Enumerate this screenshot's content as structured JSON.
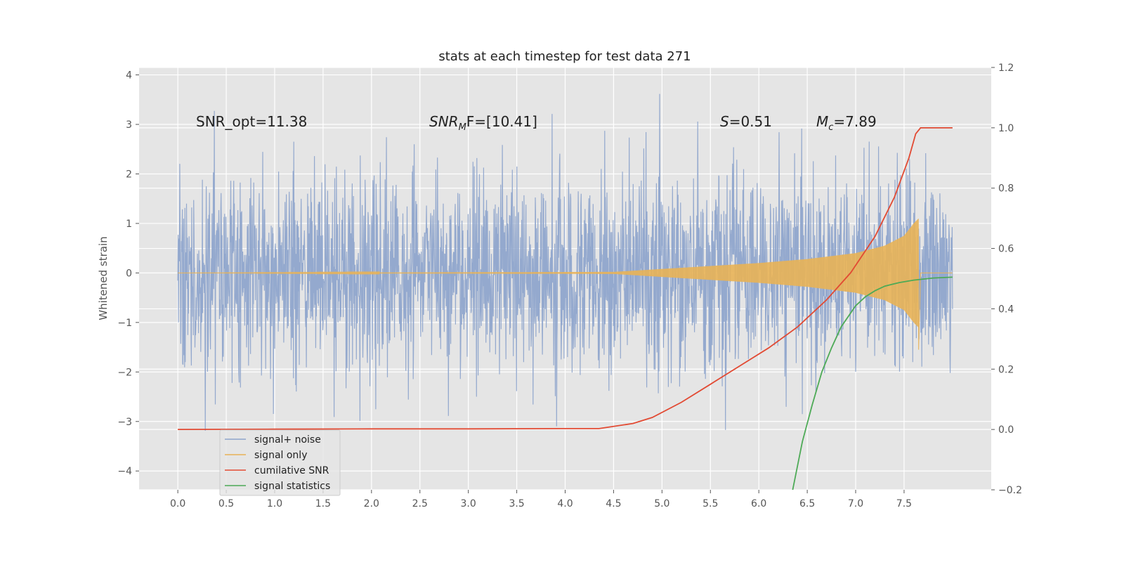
{
  "chart_data": {
    "type": "line",
    "title": "stats at each timestep for test data 271",
    "ylabel": "Whitened strain",
    "xlabel": "",
    "xlim": [
      -0.4,
      8.4
    ],
    "ylim": [
      -4.38,
      4.15
    ],
    "y2lim": [
      -0.2,
      1.2
    ],
    "x_ticks": [
      0.0,
      0.5,
      1.0,
      1.5,
      2.0,
      2.5,
      3.0,
      3.5,
      4.0,
      4.5,
      5.0,
      5.5,
      6.0,
      6.5,
      7.0,
      7.5
    ],
    "x_tick_labels": [
      "0.0",
      "0.5",
      "1.0",
      "1.5",
      "2.0",
      "2.5",
      "3.0",
      "3.5",
      "4.0",
      "4.5",
      "5.0",
      "5.5",
      "6.0",
      "6.5",
      "7.0",
      "7.5"
    ],
    "y_ticks": [
      -4,
      -3,
      -2,
      -1,
      0,
      1,
      2,
      3,
      4
    ],
    "y_tick_labels": [
      "−4",
      "−3",
      "−2",
      "−1",
      "0",
      "1",
      "2",
      "3",
      "4"
    ],
    "y2_ticks": [
      -0.2,
      0.0,
      0.2,
      0.4,
      0.6,
      0.8,
      1.0,
      1.2
    ],
    "y2_tick_labels": [
      "−0.2",
      "0.0",
      "0.2",
      "0.4",
      "0.6",
      "0.8",
      "1.0",
      "1.2"
    ],
    "grid": true,
    "legend_position": "lower-left",
    "annotations": {
      "snr_opt": "SNR_opt=11.38",
      "snr_mf_main": "SNR",
      "snr_mf_sub": "M",
      "snr_mf_rest": "F=[10.41]",
      "s_main": "S",
      "s_rest": "=0.51",
      "mc_main": "M",
      "mc_sub": "c",
      "mc_rest": "=7.89"
    },
    "series": [
      {
        "name": "signal+ noise",
        "color": "#8fa5cc",
        "axis": "left",
        "style": "dense noise, approx. std 0.9, range about -4 to 3.8",
        "x_range": [
          0.0,
          8.0
        ]
      },
      {
        "name": "signal only",
        "color": "#e8b256",
        "axis": "left",
        "envelope": {
          "x": [
            0.0,
            4.5,
            5.0,
            5.5,
            6.0,
            6.5,
            7.0,
            7.3,
            7.5,
            7.6,
            7.65
          ],
          "amplitude": [
            0.0,
            0.02,
            0.08,
            0.14,
            0.2,
            0.28,
            0.4,
            0.55,
            0.75,
            1.0,
            1.1
          ]
        }
      },
      {
        "name": "cumilative SNR",
        "color": "#e24a33",
        "axis": "right",
        "x": [
          0.0,
          1.0,
          2.0,
          3.0,
          4.0,
          4.35,
          4.7,
          4.9,
          5.2,
          5.5,
          5.8,
          6.1,
          6.4,
          6.7,
          6.95,
          7.2,
          7.4,
          7.55,
          7.62,
          7.67,
          8.0
        ],
        "values": [
          0.0,
          0.001,
          0.002,
          0.002,
          0.003,
          0.003,
          0.02,
          0.04,
          0.09,
          0.15,
          0.21,
          0.27,
          0.34,
          0.43,
          0.52,
          0.64,
          0.77,
          0.9,
          0.98,
          1.0,
          1.0
        ]
      },
      {
        "name": "signal statistics",
        "color": "#4daa56",
        "axis": "right",
        "x": [
          6.35,
          6.45,
          6.55,
          6.65,
          6.75,
          6.85,
          7.0,
          7.1,
          7.2,
          7.3,
          7.45,
          7.6,
          7.8,
          8.0
        ],
        "values": [
          -0.2,
          -0.04,
          0.08,
          0.19,
          0.27,
          0.34,
          0.41,
          0.44,
          0.46,
          0.475,
          0.487,
          0.495,
          0.502,
          0.505
        ]
      }
    ]
  }
}
